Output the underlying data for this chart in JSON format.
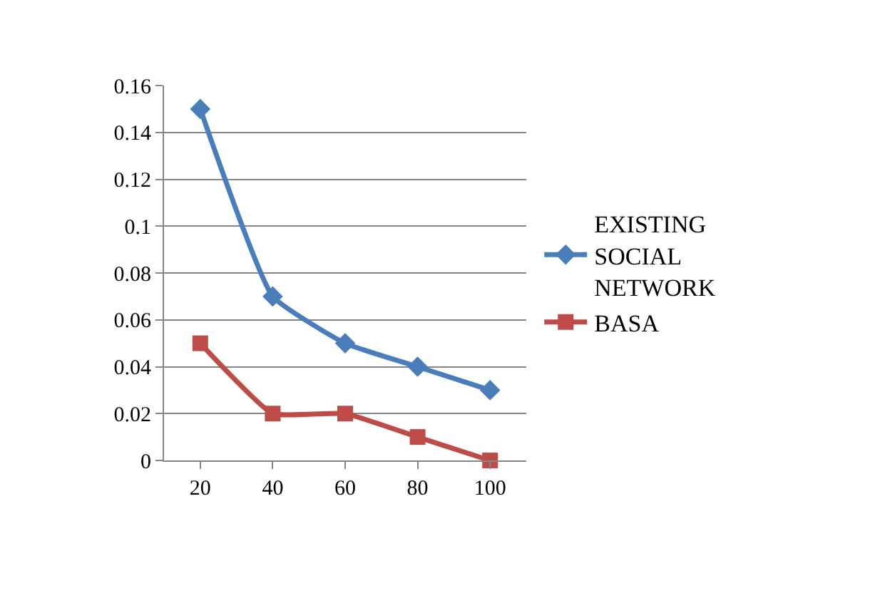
{
  "chart_data": {
    "type": "line",
    "categories": [
      "20",
      "40",
      "60",
      "80",
      "100"
    ],
    "series": [
      {
        "name": "EXISTING SOCIAL NETWORK",
        "color": "#4a7ebb",
        "marker": "diamond",
        "values": [
          0.15,
          0.07,
          0.05,
          0.04,
          0.03
        ]
      },
      {
        "name": "BASA",
        "color": "#be4b48",
        "marker": "square",
        "values": [
          0.05,
          0.02,
          0.02,
          0.01,
          0.0
        ]
      }
    ],
    "ylim": [
      0,
      0.16
    ],
    "yticks": [
      0,
      0.02,
      0.04,
      0.06,
      0.08,
      0.1,
      0.12,
      0.14,
      0.16
    ],
    "grid": "y",
    "legend": "right"
  }
}
